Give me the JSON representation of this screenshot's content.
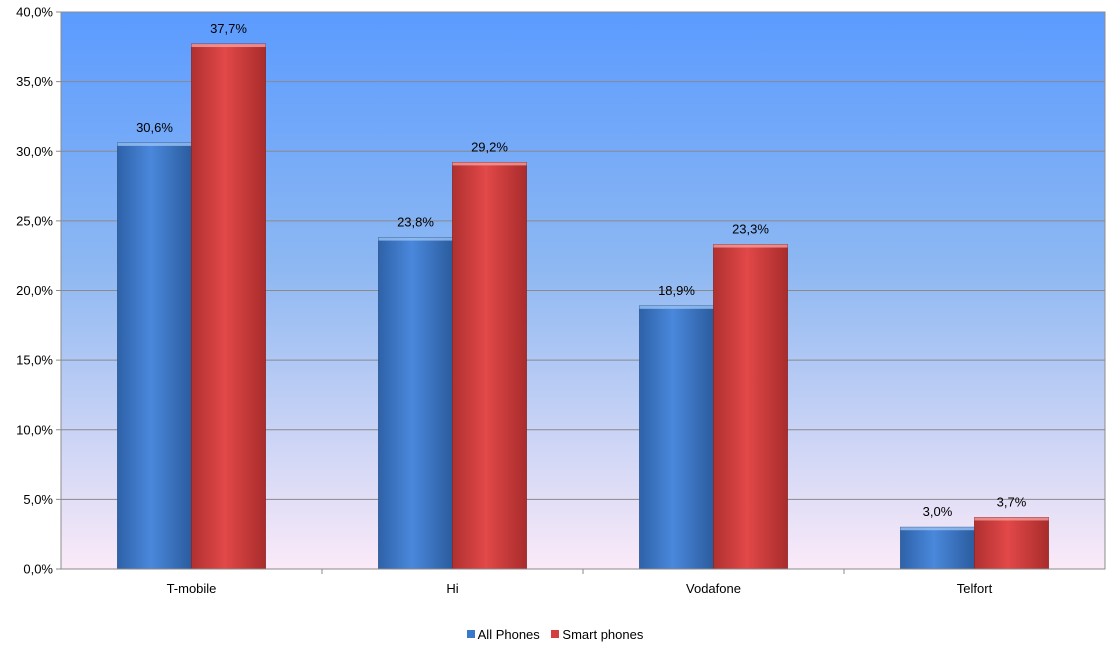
{
  "chart_data": {
    "type": "bar",
    "title": "",
    "xlabel": "",
    "ylabel": "",
    "categories": [
      "T-mobile",
      "Hi",
      "Vodafone",
      "Telfort"
    ],
    "series": [
      {
        "name": "All Phones",
        "values": [
          30.6,
          23.8,
          18.9,
          3.0
        ],
        "color": "#3a78c9",
        "labels": [
          "30,6%",
          "23,8%",
          "18,9%",
          "3,0%"
        ]
      },
      {
        "name": "Smart phones",
        "values": [
          37.7,
          29.2,
          23.3,
          3.7
        ],
        "color": "#d13f3f",
        "labels": [
          "37,7%",
          "29,2%",
          "23,3%",
          "3,7%"
        ]
      }
    ],
    "ylim": [
      0,
      40
    ],
    "yticks": [
      0,
      5,
      10,
      15,
      20,
      25,
      30,
      35,
      40
    ],
    "ytick_labels": [
      "0,0%",
      "5,0%",
      "10,0%",
      "15,0%",
      "20,0%",
      "25,0%",
      "30,0%",
      "35,0%",
      "40,0%"
    ],
    "grid": true,
    "legend_position": "bottom",
    "background": {
      "top": "#5b9bff",
      "bottom": "#fbeaf8"
    }
  }
}
